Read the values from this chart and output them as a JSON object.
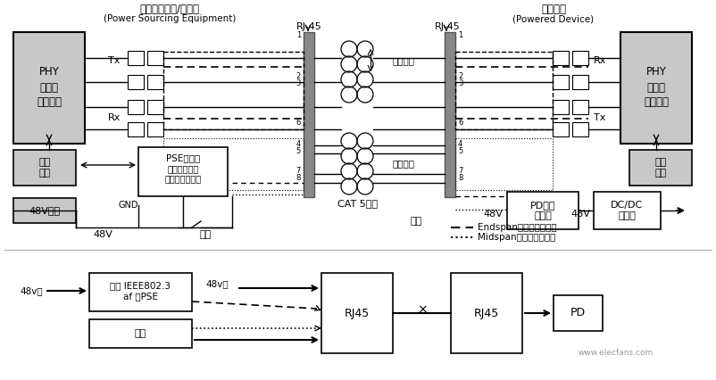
{
  "bg_color": "#ffffff",
  "top_label_left": "以太网交换机/集线器",
  "top_label_left2": "(Power Sourcing Equipment)",
  "top_label_right": "受电设备",
  "top_label_right2": "(Powered Device)",
  "rj45_left": "RJ-45",
  "rj45_right": "RJ-45",
  "phy_left": "PHY\n（网络\n物理层）",
  "phy_right": "PHY\n（网络\n物理层）",
  "master_left": "主处\n理器",
  "master_right": "主处\n理器",
  "pse_line1": "PSE控制器",
  "pse_line2": "（每芯片管理",
  "pse_line3": "一到八个端口）",
  "power48_text": "48V电源",
  "switch_text": "开关",
  "gnd_text": "GND",
  "cat5_text": "CAT 5线缆",
  "signal_pair": "信号线对",
  "spare_pair": "备用线对",
  "tx_text": "Tx",
  "rx_text": "Rx",
  "pd_ctrl1": "PD接口",
  "pd_ctrl2": "控制器",
  "dcdc1": "DC/DC",
  "dcdc2": "转换器",
  "v48_text": "48V",
  "note_text": "注：",
  "endspan_text": "Endspan设备的供电通道",
  "midspan_text": "Midspan设备的供电通道",
  "bottom_pse1": "兼容 IEEE802.3",
  "bottom_pse2": "af 的PSE",
  "bottom_data_text": "数据",
  "bottom_rj45_1": "RJ45",
  "bottom_rj45_2": "RJ45",
  "bottom_pd": "PD",
  "v48v_in": "48v入",
  "v48v_out": "48v出",
  "watermark": "www.elecfans.com"
}
